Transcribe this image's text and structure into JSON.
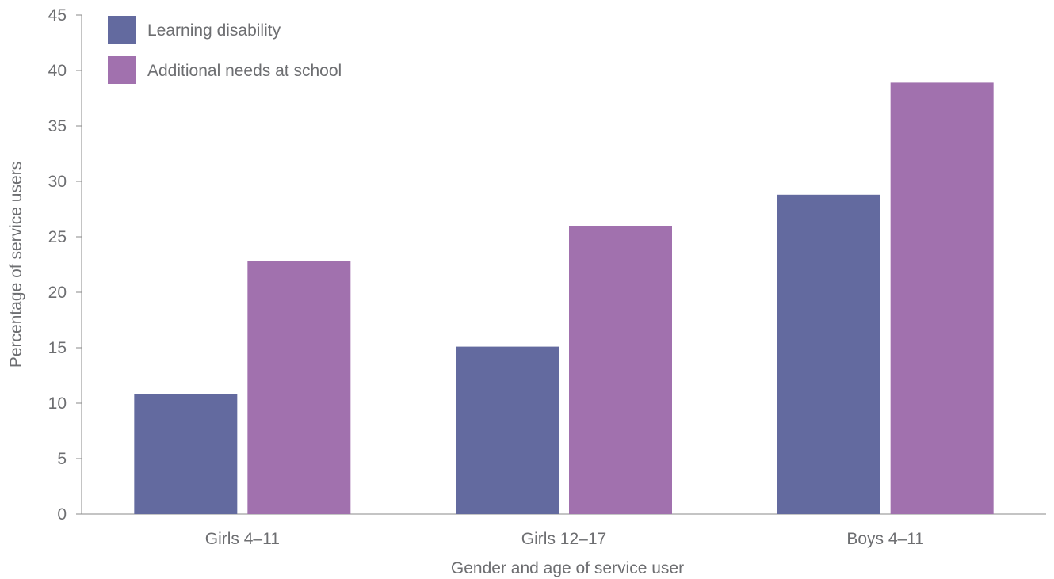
{
  "chart_data": {
    "type": "bar",
    "categories": [
      "Girls 4–11",
      "Girls 12–17",
      "Boys 4–11"
    ],
    "series": [
      {
        "name": "Learning disability",
        "values": [
          10.8,
          15.1,
          28.8
        ],
        "color": "#636a9f"
      },
      {
        "name": "Additional needs at school",
        "values": [
          22.8,
          26.0,
          38.9
        ],
        "color": "#a171ae"
      }
    ],
    "xlabel": "Gender and age of service user",
    "ylabel": "Percentage of service users",
    "ylim": [
      0,
      45
    ],
    "yticks": [
      0,
      5,
      10,
      15,
      20,
      25,
      30,
      35,
      40,
      45
    ],
    "grid": false,
    "legend_position": "top-left"
  }
}
